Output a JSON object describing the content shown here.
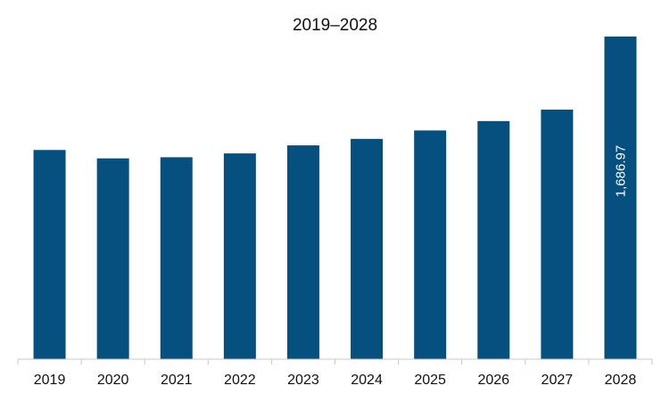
{
  "chart_data": {
    "type": "bar",
    "title": "2019–2028",
    "categories": [
      "2019",
      "2020",
      "2021",
      "2022",
      "2023",
      "2024",
      "2025",
      "2026",
      "2027",
      "2028"
    ],
    "values": [
      1094,
      1050,
      1056,
      1076,
      1118,
      1152,
      1196,
      1245,
      1305,
      1686.97
    ],
    "data_labels": [
      "",
      "",
      "",
      "",
      "",
      "",
      "",
      "",
      "",
      "1,686.97"
    ],
    "bar_color": "#06507f",
    "axis_color": "#c8c8c8",
    "ylim": [
      0,
      1686.97
    ],
    "grid": false,
    "legend": "none"
  }
}
